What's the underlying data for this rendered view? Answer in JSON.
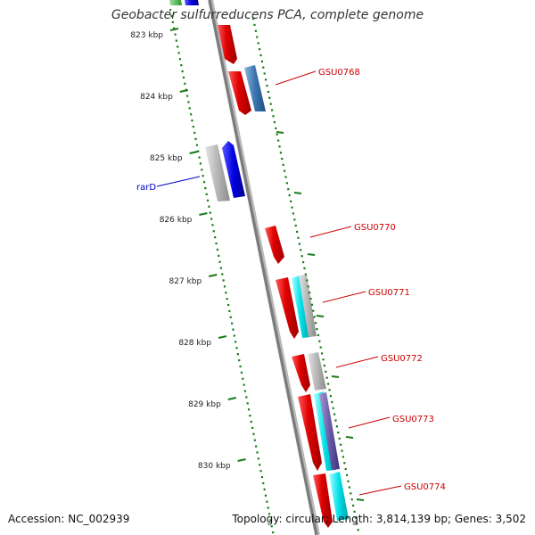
{
  "title": "Geobacter sulfurreducens PCA, complete genome",
  "footer": {
    "accession": "Accession: NC_002939",
    "summary": "Topology: circular; Length: 3,814,139 bp; Genes: 3,502"
  },
  "kbp_ticks": [
    {
      "label": "823 kbp",
      "kbp": 823
    },
    {
      "label": "824 kbp",
      "kbp": 824
    },
    {
      "label": "825 kbp",
      "kbp": 825
    },
    {
      "label": "826 kbp",
      "kbp": 826
    },
    {
      "label": "827 kbp",
      "kbp": 827
    },
    {
      "label": "828 kbp",
      "kbp": 828
    },
    {
      "label": "829 kbp",
      "kbp": 829
    },
    {
      "label": "830 kbp",
      "kbp": 830
    }
  ],
  "gene_labels": [
    {
      "name": "GSU0768",
      "color": "#cc0000"
    },
    {
      "name": "rarD",
      "color": "#0000cc"
    },
    {
      "name": "GSU0770",
      "color": "#cc0000"
    },
    {
      "name": "GSU0771",
      "color": "#cc0000"
    },
    {
      "name": "GSU0772",
      "color": "#cc0000"
    },
    {
      "name": "GSU0773",
      "color": "#cc0000"
    },
    {
      "name": "GSU0774",
      "color": "#cc0000"
    }
  ],
  "colors": {
    "backbone": "#8a8a8a",
    "tick_green": "#1a7a1a",
    "cds": "#e00000",
    "rna": "#3a74b0",
    "gene_blue": "#0000e0",
    "grey_feature": "#b5b5b5",
    "cyan_feature": "#00e0e8",
    "purple_feature": "#6a5aa8"
  }
}
